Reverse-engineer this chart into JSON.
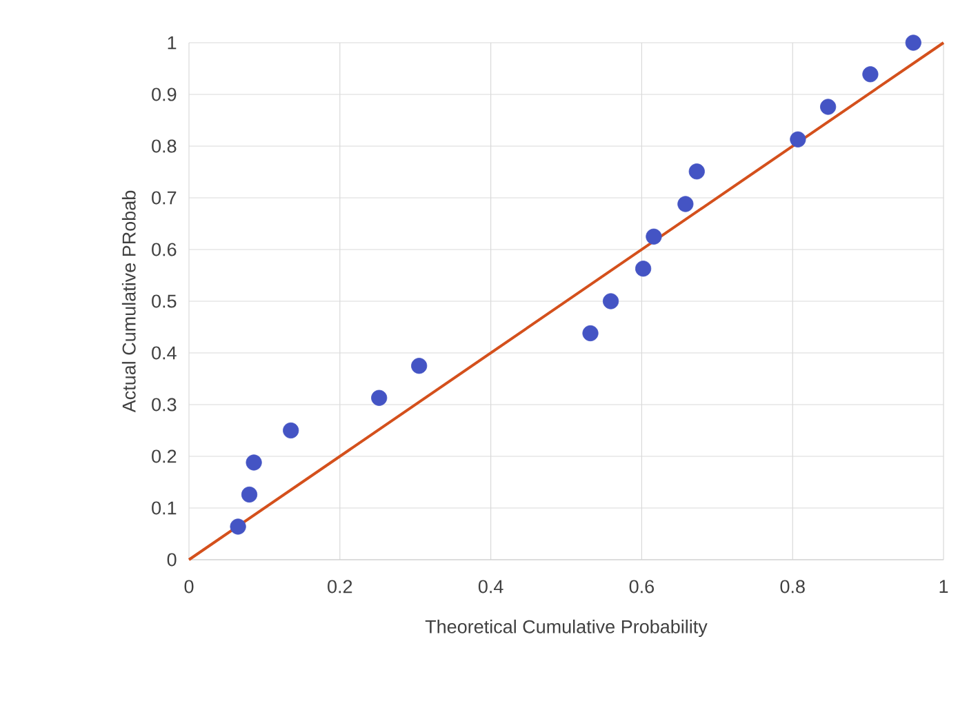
{
  "chart_data": {
    "type": "scatter",
    "xlabel": "Theoretical Cumulative Probability",
    "ylabel": "Actual Cumulative PRobab",
    "xlim": [
      0,
      1
    ],
    "ylim": [
      0,
      1
    ],
    "xticks": [
      0,
      0.2,
      0.4,
      0.6,
      0.8,
      1
    ],
    "yticks": [
      0,
      0.1,
      0.2,
      0.3,
      0.4,
      0.5,
      0.6,
      0.7,
      0.8,
      0.9,
      1
    ],
    "grid": true,
    "series": [
      {
        "marker": "circle",
        "color": "#4454c4",
        "x": [
          0.065,
          0.08,
          0.086,
          0.135,
          0.252,
          0.305,
          0.532,
          0.559,
          0.602,
          0.616,
          0.658,
          0.673,
          0.807,
          0.847,
          0.903,
          0.96
        ],
        "values": [
          0.064,
          0.126,
          0.188,
          0.25,
          0.313,
          0.375,
          0.438,
          0.5,
          0.563,
          0.625,
          0.688,
          0.751,
          0.813,
          0.876,
          0.939,
          1.0
        ]
      },
      {
        "type": "line",
        "marker": "none",
        "line_style": "solid",
        "color": "#d4501c",
        "x": [
          0,
          1
        ],
        "values": [
          0,
          1
        ]
      }
    ]
  }
}
